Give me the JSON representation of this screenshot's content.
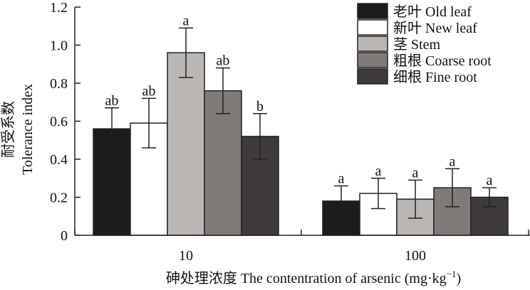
{
  "chart_data": {
    "type": "bar",
    "categories": [
      "10",
      "100"
    ],
    "xlabel_main": "砷处理浓度 The contentration of arsenic (mg·kg",
    "xlabel_sup": "−1",
    "xlabel_close": ")",
    "ylabel_cn": "耐受系数",
    "ylabel_en": "Tolerance index",
    "ylim": [
      0,
      1.2
    ],
    "yticks": [
      "0",
      "0.2",
      "0.4",
      "0.6",
      "0.8",
      "1.0",
      "1.2"
    ],
    "legend_position": "top-right",
    "series": [
      {
        "name": "老叶 Old leaf",
        "color": "#1c1c1c",
        "values": [
          0.56,
          0.18
        ],
        "errors": [
          0.11,
          0.08
        ],
        "labels": [
          "ab",
          "a"
        ]
      },
      {
        "name": "新叶 New leaf",
        "color": "#ffffff",
        "values": [
          0.59,
          0.22
        ],
        "errors": [
          0.13,
          0.08
        ],
        "labels": [
          "ab",
          "a"
        ]
      },
      {
        "name": "茎 Stem",
        "color": "#b9b6b4",
        "values": [
          0.96,
          0.19
        ],
        "errors": [
          0.13,
          0.1
        ],
        "labels": [
          "a",
          "a"
        ]
      },
      {
        "name": "粗根 Coarse root",
        "color": "#807a79",
        "values": [
          0.76,
          0.25
        ],
        "errors": [
          0.12,
          0.1
        ],
        "labels": [
          "ab",
          "a"
        ]
      },
      {
        "name": "细根 Fine root",
        "color": "#3f3a3b",
        "values": [
          0.52,
          0.2
        ],
        "errors": [
          0.12,
          0.05
        ],
        "labels": [
          "b",
          "a"
        ]
      }
    ]
  }
}
